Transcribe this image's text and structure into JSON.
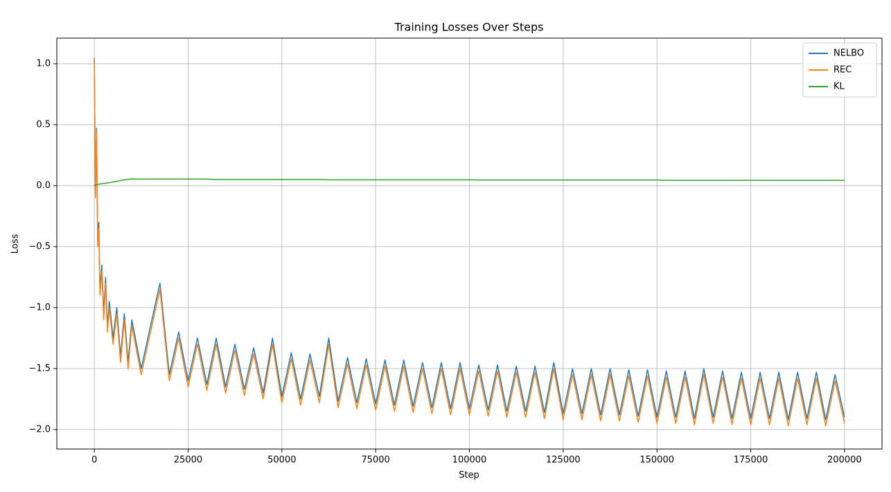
{
  "chart_data": {
    "type": "line",
    "title": "Training Losses Over Steps",
    "x_label": "Step",
    "y_label": "Loss",
    "x": [
      0,
      300,
      600,
      900,
      1200,
      1500,
      2000,
      2500,
      3000,
      3500,
      4000,
      5000,
      6000,
      7000,
      8000,
      9000,
      10000,
      12500,
      15000,
      17500,
      20000,
      22500,
      25000,
      27500,
      30000,
      32500,
      35000,
      37500,
      40000,
      42500,
      45000,
      47500,
      50000,
      52500,
      55000,
      57500,
      60000,
      62500,
      65000,
      67500,
      70000,
      72500,
      75000,
      77500,
      80000,
      82500,
      85000,
      87500,
      90000,
      92500,
      95000,
      97500,
      100000,
      102500,
      105000,
      107500,
      110000,
      112500,
      115000,
      117500,
      120000,
      122500,
      125000,
      127500,
      130000,
      132500,
      135000,
      137500,
      140000,
      142500,
      145000,
      147500,
      150000,
      152500,
      155000,
      157500,
      160000,
      162500,
      165000,
      167500,
      170000,
      172500,
      175000,
      177500,
      180000,
      182500,
      185000,
      187500,
      190000,
      192500,
      195000,
      197500,
      200000
    ],
    "series": [
      {
        "name": "NELBO",
        "color": "#1f77b4",
        "values": [
          1.05,
          -0.08,
          0.47,
          -0.45,
          -0.3,
          -0.85,
          -0.65,
          -1.05,
          -0.75,
          -1.15,
          -0.95,
          -1.25,
          -1.0,
          -1.4,
          -1.05,
          -1.45,
          -1.1,
          -1.5,
          -1.15,
          -0.8,
          -1.55,
          -1.2,
          -1.6,
          -1.25,
          -1.63,
          -1.25,
          -1.65,
          -1.3,
          -1.67,
          -1.33,
          -1.7,
          -1.25,
          -1.73,
          -1.37,
          -1.75,
          -1.38,
          -1.73,
          -1.25,
          -1.77,
          -1.41,
          -1.78,
          -1.42,
          -1.79,
          -1.43,
          -1.8,
          -1.43,
          -1.81,
          -1.45,
          -1.82,
          -1.45,
          -1.83,
          -1.45,
          -1.83,
          -1.47,
          -1.84,
          -1.47,
          -1.85,
          -1.48,
          -1.85,
          -1.48,
          -1.86,
          -1.45,
          -1.87,
          -1.5,
          -1.87,
          -1.5,
          -1.88,
          -1.5,
          -1.88,
          -1.51,
          -1.89,
          -1.51,
          -1.9,
          -1.52,
          -1.9,
          -1.52,
          -1.91,
          -1.5,
          -1.9,
          -1.52,
          -1.91,
          -1.53,
          -1.91,
          -1.53,
          -1.91,
          -1.53,
          -1.92,
          -1.53,
          -1.91,
          -1.53,
          -1.92,
          -1.55,
          -1.9
        ]
      },
      {
        "name": "REC",
        "color": "#ff7f0e",
        "values": [
          1.05,
          -0.1,
          0.45,
          -0.5,
          -0.35,
          -0.9,
          -0.7,
          -1.1,
          -0.8,
          -1.2,
          -1.0,
          -1.3,
          -1.05,
          -1.45,
          -1.1,
          -1.5,
          -1.15,
          -1.55,
          -1.2,
          -0.85,
          -1.6,
          -1.25,
          -1.65,
          -1.3,
          -1.68,
          -1.3,
          -1.7,
          -1.35,
          -1.72,
          -1.38,
          -1.75,
          -1.3,
          -1.78,
          -1.42,
          -1.8,
          -1.43,
          -1.78,
          -1.3,
          -1.82,
          -1.46,
          -1.83,
          -1.47,
          -1.84,
          -1.48,
          -1.85,
          -1.48,
          -1.86,
          -1.5,
          -1.87,
          -1.5,
          -1.88,
          -1.5,
          -1.88,
          -1.52,
          -1.89,
          -1.52,
          -1.9,
          -1.53,
          -1.9,
          -1.53,
          -1.91,
          -1.5,
          -1.92,
          -1.55,
          -1.92,
          -1.55,
          -1.93,
          -1.55,
          -1.93,
          -1.56,
          -1.94,
          -1.56,
          -1.95,
          -1.57,
          -1.95,
          -1.57,
          -1.96,
          -1.55,
          -1.95,
          -1.57,
          -1.96,
          -1.58,
          -1.96,
          -1.58,
          -1.96,
          -1.58,
          -1.97,
          -1.58,
          -1.96,
          -1.58,
          -1.97,
          -1.6,
          -1.95
        ]
      },
      {
        "name": "KL",
        "color": "#2ca02c",
        "values": [
          0,
          0.005,
          0.008,
          0.01,
          0.012,
          0.014,
          0.016,
          0.018,
          0.02,
          0.022,
          0.024,
          0.03,
          0.036,
          0.042,
          0.048,
          0.052,
          0.055,
          0.054,
          0.054,
          0.054,
          0.054,
          0.054,
          0.054,
          0.054,
          0.054,
          0.05,
          0.05,
          0.05,
          0.05,
          0.05,
          0.05,
          0.05,
          0.05,
          0.05,
          0.05,
          0.05,
          0.05,
          0.048,
          0.048,
          0.048,
          0.048,
          0.048,
          0.048,
          0.048,
          0.048,
          0.048,
          0.048,
          0.048,
          0.048,
          0.048,
          0.048,
          0.048,
          0.048,
          0.046,
          0.046,
          0.046,
          0.046,
          0.046,
          0.046,
          0.046,
          0.046,
          0.046,
          0.046,
          0.046,
          0.046,
          0.046,
          0.046,
          0.046,
          0.046,
          0.046,
          0.046,
          0.046,
          0.046,
          0.044,
          0.044,
          0.044,
          0.044,
          0.044,
          0.044,
          0.044,
          0.044,
          0.044,
          0.044,
          0.044,
          0.044,
          0.044,
          0.044,
          0.044,
          0.044,
          0.044,
          0.044,
          0.044,
          0.044
        ]
      }
    ],
    "xlim": [
      -10000,
      210000
    ],
    "xticks": [
      0,
      25000,
      50000,
      75000,
      100000,
      125000,
      150000,
      175000,
      200000
    ],
    "ylim": [
      -2.16,
      1.21
    ],
    "yticks": [
      {
        "value": -2.0,
        "label": "−2.0"
      },
      {
        "value": -1.5,
        "label": "−1.5"
      },
      {
        "value": -1.0,
        "label": "−1.0"
      },
      {
        "value": -0.5,
        "label": "−0.5"
      },
      {
        "value": 0.0,
        "label": "0.0"
      },
      {
        "value": 0.5,
        "label": "0.5"
      },
      {
        "value": 1.0,
        "label": "1.0"
      }
    ],
    "grid": true,
    "legend": "upper right"
  }
}
